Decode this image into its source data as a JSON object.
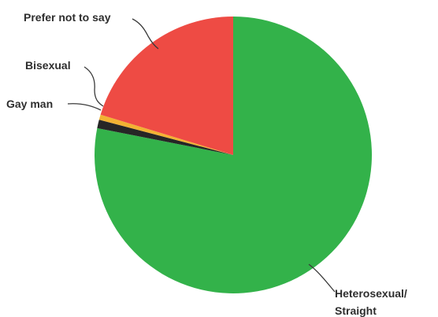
{
  "chart_data": {
    "type": "pie",
    "title": "",
    "slices": [
      {
        "label": "Heterosexual/ Straight",
        "value": 78.1,
        "color": "#33b24a"
      },
      {
        "label": "Gay man",
        "value": 1.0,
        "color": "#262626"
      },
      {
        "label": "Bisexual",
        "value": 0.6,
        "color": "#f2b233"
      },
      {
        "label": "Prefer not to say",
        "value": 20.3,
        "color": "#ee4b44"
      }
    ],
    "start": "12 o'clock",
    "direction": "clockwise",
    "legend": "none (leader-line labels)"
  }
}
